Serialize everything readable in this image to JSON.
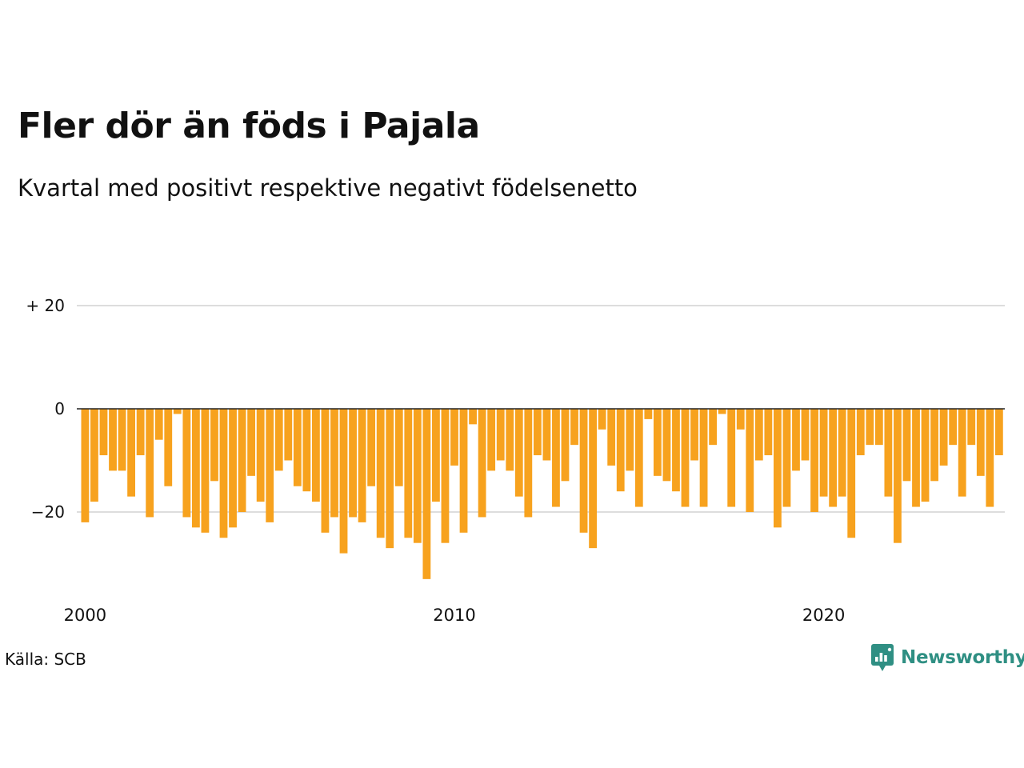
{
  "header": {
    "title": "Fler dör än föds i Pajala",
    "subtitle": "Kvartal med positivt respektive negativt födelsenetto"
  },
  "footer": {
    "source": "Källa: SCB",
    "brand": "Newsworthy"
  },
  "colors": {
    "bar": "#f7a21e",
    "brand": "#2f8f83",
    "grid": "#dddddd",
    "zero_line": "#222222",
    "text": "#111111"
  },
  "chart_data": {
    "type": "bar",
    "title": "Fler dör än föds i Pajala",
    "subtitle": "Kvartal med positivt respektive negativt födelsenetto",
    "xlabel": "",
    "ylabel": "",
    "ylim": [
      -33,
      20
    ],
    "y_ticks": [
      {
        "value": 20,
        "label": "+ 20"
      },
      {
        "value": 0,
        "label": "0"
      },
      {
        "value": -20,
        "label": "−20"
      }
    ],
    "x_ticks": [
      {
        "value": 2000,
        "label": "2000"
      },
      {
        "value": 2010,
        "label": "2010"
      },
      {
        "value": 2020,
        "label": "2020"
      }
    ],
    "first_quarter": "2000-Q1",
    "grid": true,
    "legend": "none",
    "values": [
      -22,
      -18,
      -9,
      -12,
      -12,
      -17,
      -9,
      -21,
      -6,
      -15,
      -1,
      -21,
      -23,
      -24,
      -14,
      -25,
      -23,
      -20,
      -13,
      -18,
      -22,
      -12,
      -10,
      -15,
      -16,
      -18,
      -24,
      -21,
      -28,
      -21,
      -22,
      -15,
      -25,
      -27,
      -15,
      -25,
      -26,
      -33,
      -18,
      -26,
      -11,
      -24,
      -3,
      -21,
      -12,
      -10,
      -12,
      -17,
      -21,
      -9,
      -10,
      -19,
      -14,
      -7,
      -24,
      -27,
      -4,
      -11,
      -16,
      -12,
      -19,
      -2,
      -13,
      -14,
      -16,
      -19,
      -10,
      -19,
      -7,
      -1,
      -19,
      -4,
      -20,
      -10,
      -9,
      -23,
      -19,
      -12,
      -10,
      -20,
      -17,
      -19,
      -17,
      -25,
      -9,
      -7,
      -7,
      -17,
      -26,
      -14,
      -19,
      -18,
      -14,
      -11,
      -7,
      -17,
      -7,
      -13,
      -19,
      -9
    ]
  }
}
